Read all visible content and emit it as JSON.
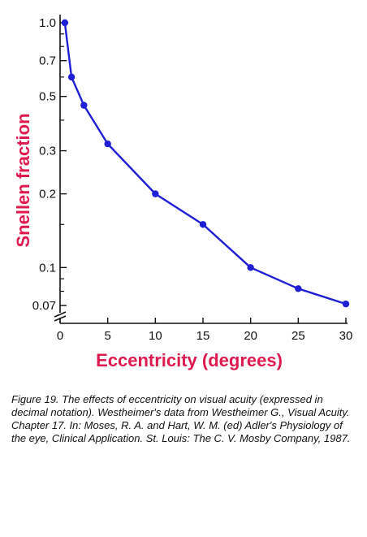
{
  "chart_data": {
    "type": "line",
    "xlabel": "Eccentricity (degrees)",
    "ylabel": "Snellen fraction",
    "x_scale": "linear",
    "y_scale": "log",
    "xlim": [
      0,
      30
    ],
    "ylim": [
      0.07,
      1.0
    ],
    "x_ticks": [
      0,
      5,
      10,
      15,
      20,
      25,
      30
    ],
    "y_ticks": [
      1.0,
      0.7,
      0.5,
      0.3,
      0.2,
      0.1,
      0.07
    ],
    "y_tick_labels": [
      "1.0",
      "0.7",
      "0.5",
      "0.3",
      "0.2",
      "0.1",
      "0.07"
    ],
    "grid": false,
    "axis_break": true,
    "label_color": "#e0194f",
    "series": [
      {
        "color": "#1f1fd6",
        "x": [
          0.5,
          1.2,
          2.5,
          5,
          10,
          15,
          20,
          25,
          30
        ],
        "y": [
          1.0,
          0.6,
          0.46,
          0.32,
          0.2,
          0.15,
          0.1,
          0.082,
          0.071
        ]
      }
    ]
  },
  "caption": "Figure 19. The effects of eccentricity on visual acuity (expressed in decimal notation). Westheimer's data from Westheimer G., Visual Acuity. Chapter 17. In: Moses, R. A. and Hart, W. M. (ed) Adler's Physiology of the eye, Clinical Application. St. Louis: The C. V. Mosby Company, 1987."
}
